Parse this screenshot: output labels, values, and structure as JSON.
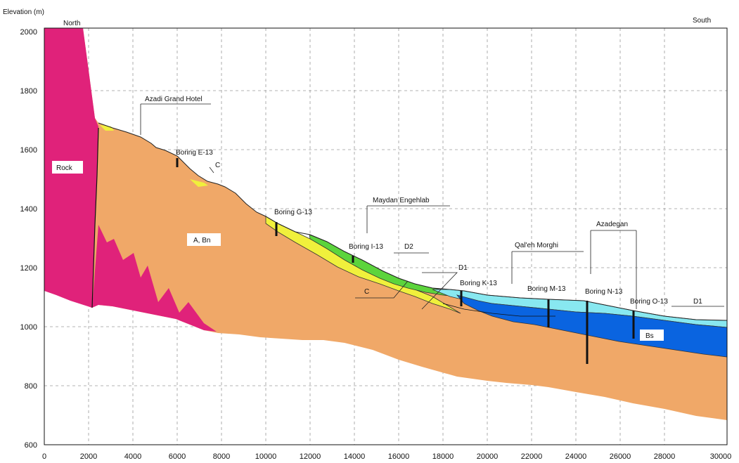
{
  "figure": {
    "ylabel": "Elevation (m)",
    "direction_left": "North",
    "direction_right": "South"
  },
  "axes": {
    "x_ticks": [
      "0",
      "2000",
      "4000",
      "6000",
      "8000",
      "10000",
      "12000",
      "14000",
      "16000",
      "18000",
      "20000",
      "22000",
      "24000",
      "26000",
      "28000",
      "30000"
    ],
    "y_ticks": [
      "2000",
      "1800",
      "1600",
      "1400",
      "1200",
      "1000",
      "800",
      "600"
    ],
    "grid": true
  },
  "labels": {
    "rock": "Rock",
    "a_bn": "A, Bn",
    "c_upper": "C",
    "c_lower": "C",
    "d2": "D2",
    "d1_mid": "D1",
    "d1_right": "D1",
    "bs": "Bs",
    "azadi": "Azadi Grand Hotel",
    "meydan": "Maydan Engehlab",
    "qaleh": "Qal'eh Morghi",
    "azadegan": "Azadegan",
    "boring_e": "Boring E-13",
    "boring_g": "Boring G-13",
    "boring_i": "Boring I-13",
    "boring_k": "Boring K-13",
    "boring_m": "Boring M-13",
    "boring_n": "Boring N-13",
    "boring_o": "Boring O-13"
  },
  "colors": {
    "rock": "#e0227a",
    "alluvium": "#f0a868",
    "unit_c": "#f0f03c",
    "unit_d2": "#5cd43c",
    "unit_d1": "#88e8f0",
    "unit_bs": "#0a64e0"
  }
}
